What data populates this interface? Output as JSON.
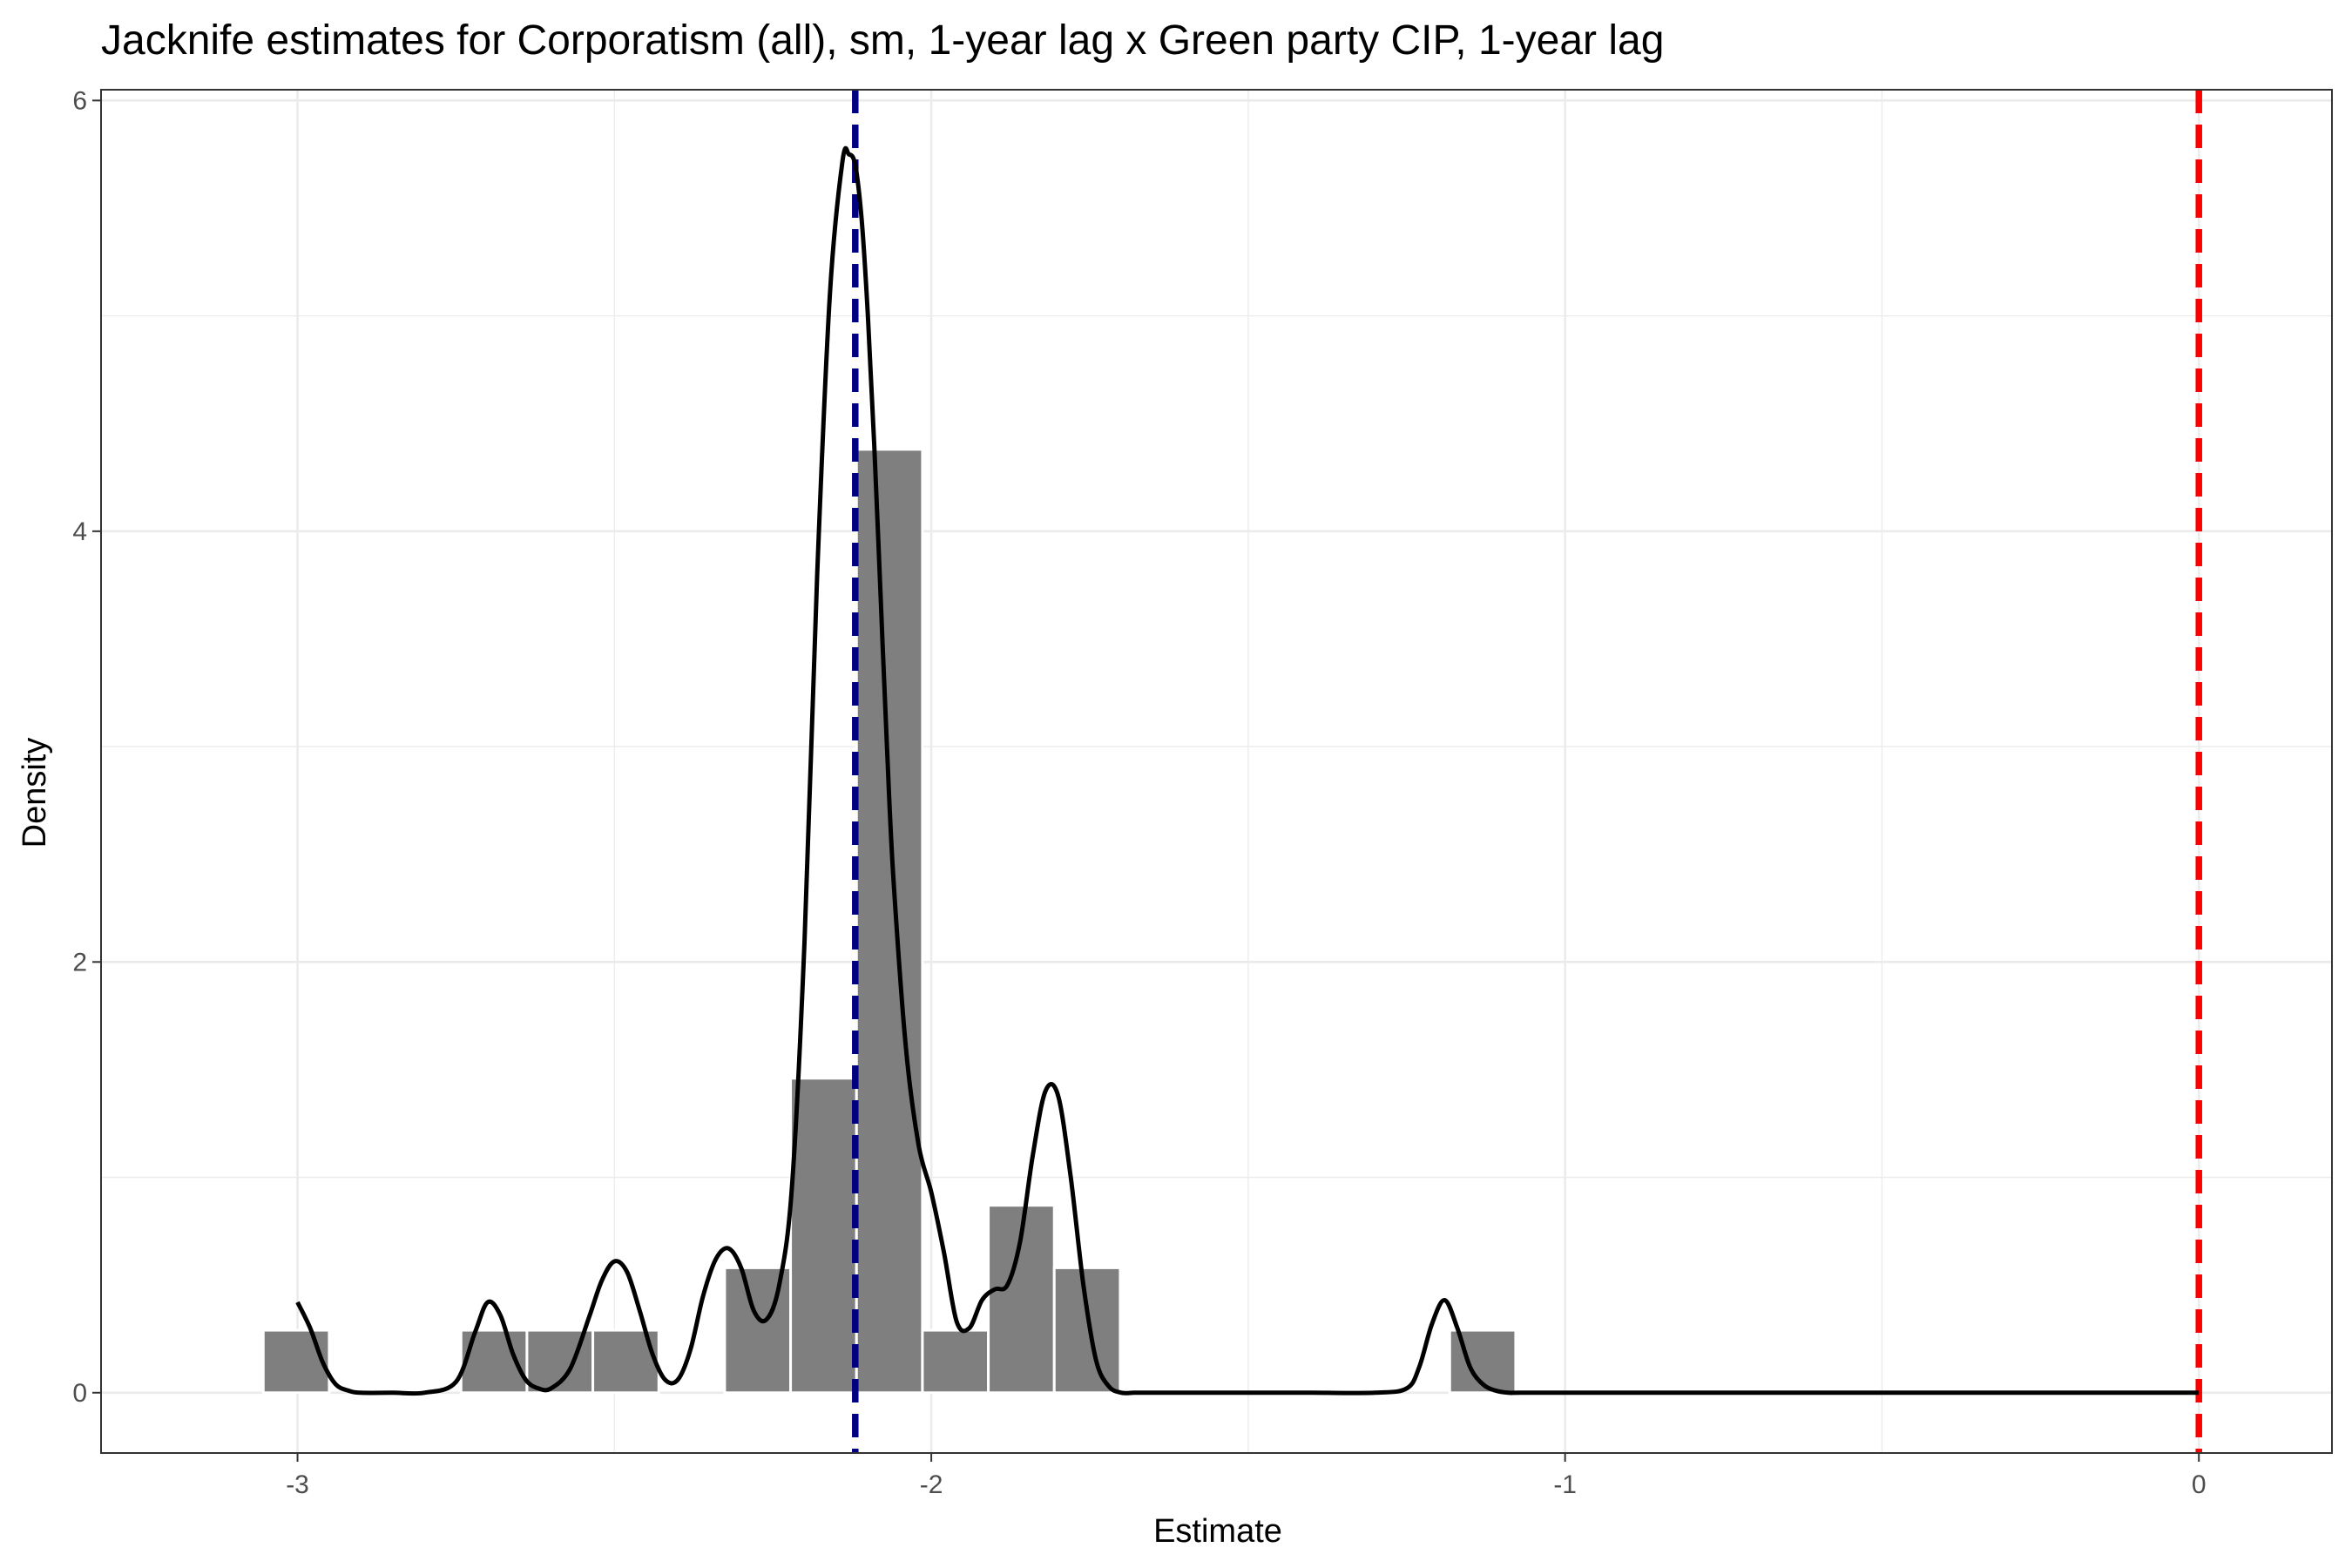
{
  "chart_data": {
    "type": "histogram",
    "title": "Jacknife estimates for Corporatism (all), sm, 1-year lag x Green party CIP, 1-year lag",
    "xlabel": "Estimate",
    "ylabel": "Density",
    "xlim": [
      -3.31,
      0.21
    ],
    "ylim": [
      -0.28,
      6.05
    ],
    "x_ticks": [
      -3,
      -2,
      -1,
      0
    ],
    "x_tick_labels": [
      "-3",
      "-2",
      "-1",
      "0"
    ],
    "y_ticks": [
      0,
      2,
      4,
      6
    ],
    "y_tick_labels": [
      "0",
      "2",
      "4",
      "6"
    ],
    "grid": true,
    "legend": "none",
    "bin_width": 0.104,
    "histogram": {
      "bins": [
        {
          "x0": -3.054,
          "x1": -2.95,
          "density": 0.29
        },
        {
          "x0": -2.742,
          "x1": -2.638,
          "density": 0.29
        },
        {
          "x0": -2.638,
          "x1": -2.534,
          "density": 0.29
        },
        {
          "x0": -2.534,
          "x1": -2.43,
          "density": 0.29
        },
        {
          "x0": -2.326,
          "x1": -2.222,
          "density": 0.58
        },
        {
          "x0": -2.222,
          "x1": -2.118,
          "density": 1.46
        },
        {
          "x0": -2.118,
          "x1": -2.014,
          "density": 4.38
        },
        {
          "x0": -2.014,
          "x1": -1.91,
          "density": 0.29
        },
        {
          "x0": -1.91,
          "x1": -1.806,
          "density": 0.87
        },
        {
          "x0": -1.806,
          "x1": -1.702,
          "density": 0.58
        },
        {
          "x0": -1.182,
          "x1": -1.078,
          "density": 0.29
        }
      ],
      "color": "#7f7f7f"
    },
    "density_curve": {
      "color": "#000000",
      "x": [
        -3.0,
        -2.98,
        -2.96,
        -2.94,
        -2.92,
        -2.9,
        -2.85,
        -2.8,
        -2.75,
        -2.72,
        -2.7,
        -2.68,
        -2.66,
        -2.64,
        -2.62,
        -2.6,
        -2.57,
        -2.54,
        -2.52,
        -2.5,
        -2.48,
        -2.46,
        -2.44,
        -2.42,
        -2.4,
        -2.38,
        -2.36,
        -2.34,
        -2.32,
        -2.3,
        -2.28,
        -2.26,
        -2.24,
        -2.22,
        -2.2,
        -2.18,
        -2.16,
        -2.14,
        -2.13,
        -2.12,
        -2.11,
        -2.1,
        -2.09,
        -2.08,
        -2.07,
        -2.06,
        -2.04,
        -2.02,
        -2.0,
        -1.98,
        -1.96,
        -1.94,
        -1.92,
        -1.9,
        -1.88,
        -1.86,
        -1.84,
        -1.82,
        -1.8,
        -1.78,
        -1.76,
        -1.74,
        -1.72,
        -1.7,
        -1.68,
        -1.65,
        -1.6,
        -1.5,
        -1.4,
        -1.3,
        -1.25,
        -1.23,
        -1.21,
        -1.19,
        -1.17,
        -1.15,
        -1.13,
        -1.11,
        -1.09,
        -1.07,
        -1.0,
        -0.8,
        -0.6,
        -0.4,
        -0.2,
        0.0
      ],
      "y": [
        0.42,
        0.3,
        0.14,
        0.04,
        0.01,
        0.0,
        0.0,
        0.0,
        0.05,
        0.28,
        0.42,
        0.36,
        0.18,
        0.06,
        0.02,
        0.02,
        0.11,
        0.35,
        0.52,
        0.61,
        0.56,
        0.38,
        0.18,
        0.06,
        0.06,
        0.2,
        0.45,
        0.62,
        0.67,
        0.58,
        0.38,
        0.34,
        0.5,
        0.95,
        2.1,
        3.8,
        5.1,
        5.72,
        5.75,
        5.7,
        5.45,
        5.0,
        4.4,
        3.7,
        3.0,
        2.4,
        1.6,
        1.15,
        0.93,
        0.65,
        0.33,
        0.3,
        0.43,
        0.48,
        0.5,
        0.7,
        1.1,
        1.4,
        1.38,
        1.0,
        0.5,
        0.15,
        0.03,
        0.0,
        0.0,
        0.0,
        0.0,
        0.0,
        0.0,
        0.0,
        0.02,
        0.12,
        0.32,
        0.43,
        0.3,
        0.12,
        0.04,
        0.01,
        0.0,
        0.0,
        0.0,
        0.0,
        0.0,
        0.0,
        0.0,
        0.0
      ]
    },
    "reference_lines": [
      {
        "x": -2.12,
        "color": "#000080",
        "style": "dashed"
      },
      {
        "x": 0.0,
        "color": "#ff0000",
        "style": "dashed"
      }
    ]
  }
}
